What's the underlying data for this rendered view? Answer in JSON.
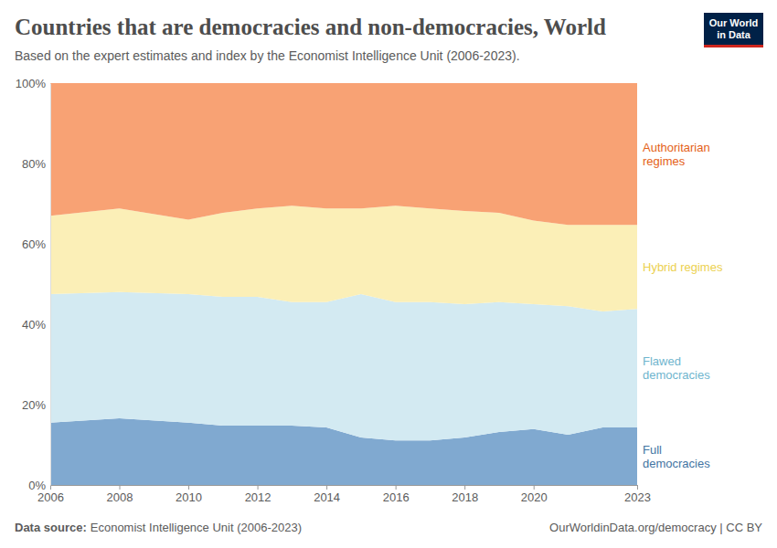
{
  "chart_data": {
    "type": "stacked_area",
    "stacked": true,
    "title": "Countries that are democracies and non-democracies, World",
    "subtitle": "Based on the expert estimates and index by the Economist Intelligence Unit (2006-2023).",
    "logo": "Our World in Data",
    "source_label": "Data source:",
    "source": "Economist Intelligence Unit (2006-2023)",
    "url": "OurWorldinData.org/democracy | CC BY",
    "x": [
      2006,
      2008,
      2010,
      2011,
      2012,
      2013,
      2014,
      2015,
      2016,
      2017,
      2018,
      2019,
      2020,
      2021,
      2022,
      2023
    ],
    "xlim": [
      2006,
      2023
    ],
    "xticks": [
      2006,
      2008,
      2010,
      2012,
      2014,
      2016,
      2018,
      2020,
      2023
    ],
    "ylim": [
      0,
      100
    ],
    "yticks": [
      {
        "value": 0,
        "label": "0%"
      },
      {
        "value": 20,
        "label": "20%"
      },
      {
        "value": 40,
        "label": "40%"
      },
      {
        "value": 60,
        "label": "60%"
      },
      {
        "value": 80,
        "label": "80%"
      },
      {
        "value": 100,
        "label": "100%"
      }
    ],
    "series": [
      {
        "name": "Full democracies",
        "color": "#80a9d0",
        "values": [
          15.5,
          16.6,
          15.5,
          14.8,
          14.8,
          14.8,
          14.3,
          11.8,
          11.1,
          11.1,
          11.8,
          13.2,
          13.9,
          12.5,
          14.3,
          14.3
        ]
      },
      {
        "name": "Flawed democracies",
        "color": "#d3eaf2",
        "values": [
          32.0,
          31.4,
          32.0,
          32.0,
          32.0,
          30.7,
          31.2,
          35.7,
          34.4,
          34.4,
          33.2,
          32.3,
          31.1,
          32.0,
          28.9,
          29.5
        ]
      },
      {
        "name": "Hybrid regimes",
        "color": "#fbefb7",
        "values": [
          19.5,
          20.8,
          18.5,
          20.9,
          22.0,
          24.0,
          23.3,
          21.3,
          24.0,
          23.3,
          23.2,
          22.2,
          20.8,
          20.2,
          21.5,
          20.9
        ]
      },
      {
        "name": "Authoritarian regimes",
        "color": "#f8a274",
        "values": [
          33.0,
          31.2,
          34.0,
          32.3,
          31.2,
          30.5,
          31.2,
          31.2,
          30.5,
          31.2,
          31.8,
          32.3,
          34.2,
          35.3,
          35.3,
          35.3
        ]
      }
    ]
  }
}
